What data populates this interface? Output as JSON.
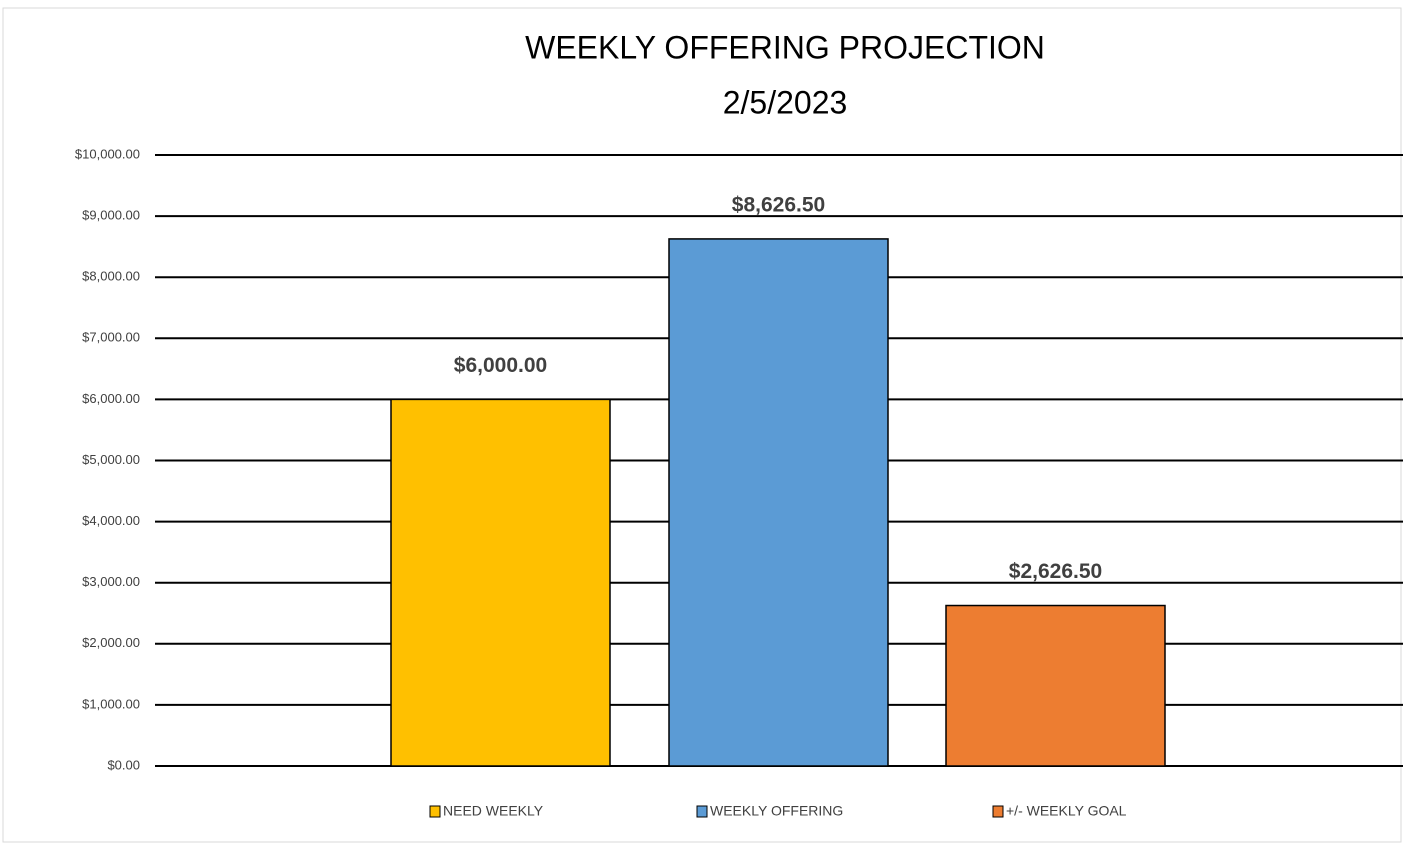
{
  "chart_data": {
    "type": "bar",
    "title": "WEEKLY OFFERING PROJECTION",
    "subtitle": "2/5/2023",
    "categories": [
      null
    ],
    "series": [
      {
        "name": "NEED WEEKLY",
        "color": "#ffc000",
        "values": [
          6000
        ],
        "value_labels": [
          "$6,000.00"
        ]
      },
      {
        "name": "WEEKLY OFFERING",
        "color": "#5b9bd5",
        "values": [
          8626.5
        ],
        "value_labels": [
          "$8,626.50"
        ]
      },
      {
        "name": "+/- WEEKLY GOAL",
        "color": "#ed7d31",
        "values": [
          2626.5
        ],
        "value_labels": [
          "$2,626.50"
        ]
      }
    ],
    "ylim": [
      0,
      10000
    ],
    "yticks": [
      {
        "value": 0,
        "label": "$0.00"
      },
      {
        "value": 1000,
        "label": "$1,000.00"
      },
      {
        "value": 2000,
        "label": "$2,000.00"
      },
      {
        "value": 3000,
        "label": "$3,000.00"
      },
      {
        "value": 4000,
        "label": "$4,000.00"
      },
      {
        "value": 5000,
        "label": "$5,000.00"
      },
      {
        "value": 6000,
        "label": "$6,000.00"
      },
      {
        "value": 7000,
        "label": "$7,000.00"
      },
      {
        "value": 8000,
        "label": "$8,000.00"
      },
      {
        "value": 9000,
        "label": "$9,000.00"
      },
      {
        "value": 10000,
        "label": "$10,000.00"
      }
    ],
    "grid": true,
    "legend": "bottom"
  }
}
